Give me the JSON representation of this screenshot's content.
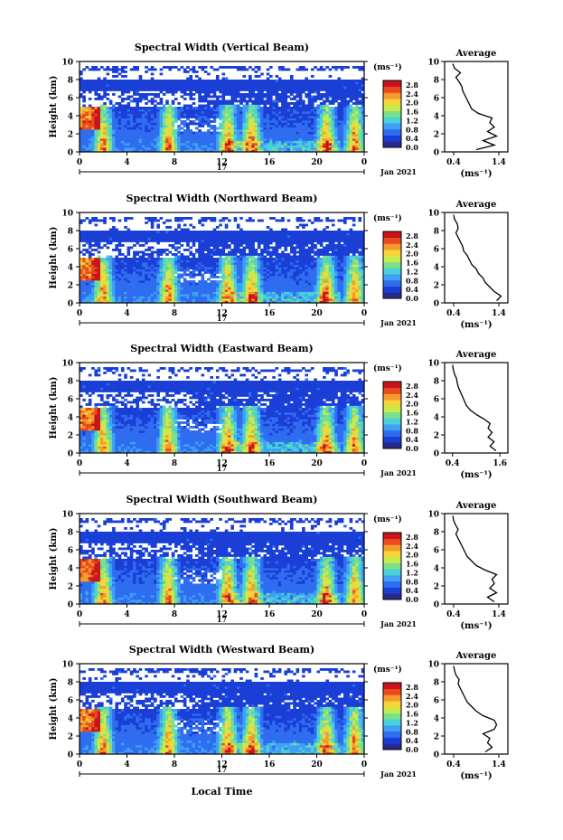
{
  "figure": {
    "xlabel": "Local Time",
    "date_label": "Jan 2021",
    "day_label": "17",
    "colorbar_unit": "(ms⁻¹)",
    "colorbar_ticks": [
      "0.0",
      "0.4",
      "0.8",
      "1.2",
      "1.6",
      "2.0",
      "2.4",
      "2.8"
    ],
    "colors": {
      "background": "#ffffff",
      "axis": "#000000",
      "scale": [
        "#2a2a8c",
        "#1a3fd6",
        "#2f6df0",
        "#3fa0f5",
        "#49d0d8",
        "#7be08a",
        "#c8ea4a",
        "#f6d43a",
        "#f59a2c",
        "#ea4a1e",
        "#c8141a"
      ]
    }
  },
  "chart_data": [
    {
      "type": "heatmap",
      "title": "Spectral Width (Vertical Beam)",
      "ylabel": "Height (km)",
      "x_ticks": [
        "0",
        "4",
        "8",
        "12",
        "16",
        "20",
        "0"
      ],
      "y_ticks": [
        "0",
        "2",
        "4",
        "6",
        "8",
        "10"
      ],
      "xlim": [
        0,
        24
      ],
      "ylim": [
        0,
        10
      ],
      "colorbar_range": [
        0.0,
        3.0
      ],
      "profile": {
        "title": "Average",
        "xlabel": "(ms⁻¹)",
        "x_ticks": [
          "0.4",
          "1.4"
        ],
        "xlim": [
          0.2,
          1.6
        ],
        "height": [
          0.25,
          0.75,
          1.25,
          1.75,
          2.25,
          2.75,
          3.25,
          3.75,
          4.25,
          4.75,
          5.25,
          5.75,
          6.25,
          6.75,
          7.25,
          7.75,
          8.25,
          8.75,
          9.25,
          9.75
        ],
        "width": [
          0.9,
          1.3,
          1.05,
          1.35,
          1.15,
          1.3,
          1.2,
          1.25,
          0.95,
          0.8,
          0.75,
          0.7,
          0.65,
          0.6,
          0.58,
          0.52,
          0.45,
          0.55,
          0.42,
          0.38
        ]
      }
    },
    {
      "type": "heatmap",
      "title": "Spectral Width (Northward Beam)",
      "ylabel": "Height (km)",
      "x_ticks": [
        "0",
        "4",
        "8",
        "12",
        "16",
        "20",
        "0"
      ],
      "y_ticks": [
        "0",
        "2",
        "4",
        "6",
        "8",
        "10"
      ],
      "xlim": [
        0,
        24
      ],
      "ylim": [
        0,
        10
      ],
      "colorbar_range": [
        0.0,
        3.0
      ],
      "profile": {
        "title": "Average",
        "xlabel": "(ms⁻¹)",
        "x_ticks": [
          "0.4",
          "1.4"
        ],
        "xlim": [
          0.2,
          1.6
        ],
        "height": [
          0.25,
          0.75,
          1.25,
          1.75,
          2.25,
          2.75,
          3.25,
          3.75,
          4.25,
          4.75,
          5.25,
          5.75,
          6.25,
          6.75,
          7.25,
          7.75,
          8.25,
          8.75,
          9.25,
          9.75
        ],
        "width": [
          1.35,
          1.45,
          1.3,
          1.2,
          1.1,
          1.05,
          0.95,
          0.9,
          0.8,
          0.75,
          0.7,
          0.62,
          0.6,
          0.55,
          0.5,
          0.45,
          0.5,
          0.48,
          0.42,
          0.4
        ]
      }
    },
    {
      "type": "heatmap",
      "title": "Spectral Width (Eastward Beam)",
      "ylabel": "Height (km)",
      "x_ticks": [
        "0",
        "4",
        "8",
        "12",
        "16",
        "20",
        "0"
      ],
      "y_ticks": [
        "0",
        "2",
        "4",
        "6",
        "8",
        "10"
      ],
      "xlim": [
        0,
        24
      ],
      "ylim": [
        0,
        10
      ],
      "colorbar_range": [
        0.0,
        3.0
      ],
      "profile": {
        "title": "Average",
        "xlabel": "(ms⁻¹)",
        "x_ticks": [
          "0.4",
          "1.6"
        ],
        "xlim": [
          0.2,
          1.8
        ],
        "height": [
          0.25,
          0.75,
          1.25,
          1.75,
          2.25,
          2.75,
          3.25,
          3.75,
          4.25,
          4.75,
          5.25,
          5.75,
          6.25,
          6.75,
          7.25,
          7.75,
          8.25,
          8.75,
          9.25,
          9.75
        ],
        "width": [
          1.5,
          1.35,
          1.45,
          1.3,
          1.4,
          1.3,
          1.35,
          1.2,
          1.0,
          0.85,
          0.75,
          0.7,
          0.65,
          0.6,
          0.55,
          0.52,
          0.5,
          0.45,
          0.42,
          0.4
        ]
      }
    },
    {
      "type": "heatmap",
      "title": "Spectral Width (Southward Beam)",
      "ylabel": "Height (km)",
      "x_ticks": [
        "0",
        "4",
        "8",
        "12",
        "16",
        "20",
        "0"
      ],
      "y_ticks": [
        "0",
        "2",
        "4",
        "6",
        "8",
        "10"
      ],
      "xlim": [
        0,
        24
      ],
      "ylim": [
        0,
        10
      ],
      "colorbar_range": [
        0.0,
        3.0
      ],
      "profile": {
        "title": "Average",
        "xlabel": "(ms⁻¹)",
        "x_ticks": [
          "0.4",
          "1.4"
        ],
        "xlim": [
          0.2,
          1.6
        ],
        "height": [
          0.25,
          0.75,
          1.25,
          1.75,
          2.25,
          2.75,
          3.25,
          3.75,
          4.25,
          4.75,
          5.25,
          5.75,
          6.25,
          6.75,
          7.25,
          7.75,
          8.25,
          8.75,
          9.25,
          9.75
        ],
        "width": [
          1.3,
          1.15,
          1.35,
          1.2,
          1.3,
          1.25,
          1.35,
          1.1,
          0.9,
          0.8,
          0.7,
          0.65,
          0.6,
          0.55,
          0.5,
          0.45,
          0.5,
          0.44,
          0.4,
          0.38
        ]
      }
    },
    {
      "type": "heatmap",
      "title": "Spectral Width (Westward Beam)",
      "ylabel": "Height (km)",
      "x_ticks": [
        "0",
        "4",
        "8",
        "12",
        "16",
        "20",
        "0"
      ],
      "y_ticks": [
        "0",
        "2",
        "4",
        "6",
        "8",
        "10"
      ],
      "xlim": [
        0,
        24
      ],
      "ylim": [
        0,
        10
      ],
      "colorbar_range": [
        0.0,
        3.0
      ],
      "profile": {
        "title": "Average",
        "xlabel": "(ms⁻¹)",
        "x_ticks": [
          "0.4",
          "1.4"
        ],
        "xlim": [
          0.2,
          1.6
        ],
        "height": [
          0.25,
          0.75,
          1.25,
          1.75,
          2.25,
          2.75,
          3.25,
          3.75,
          4.25,
          4.75,
          5.25,
          5.75,
          6.25,
          6.75,
          7.25,
          7.75,
          8.25,
          8.75,
          9.25,
          9.75
        ],
        "width": [
          1.1,
          1.25,
          1.15,
          1.2,
          1.05,
          1.3,
          1.35,
          1.3,
          1.05,
          0.9,
          0.8,
          0.7,
          0.65,
          0.6,
          0.55,
          0.5,
          0.52,
          0.45,
          0.42,
          0.4
        ]
      }
    }
  ]
}
